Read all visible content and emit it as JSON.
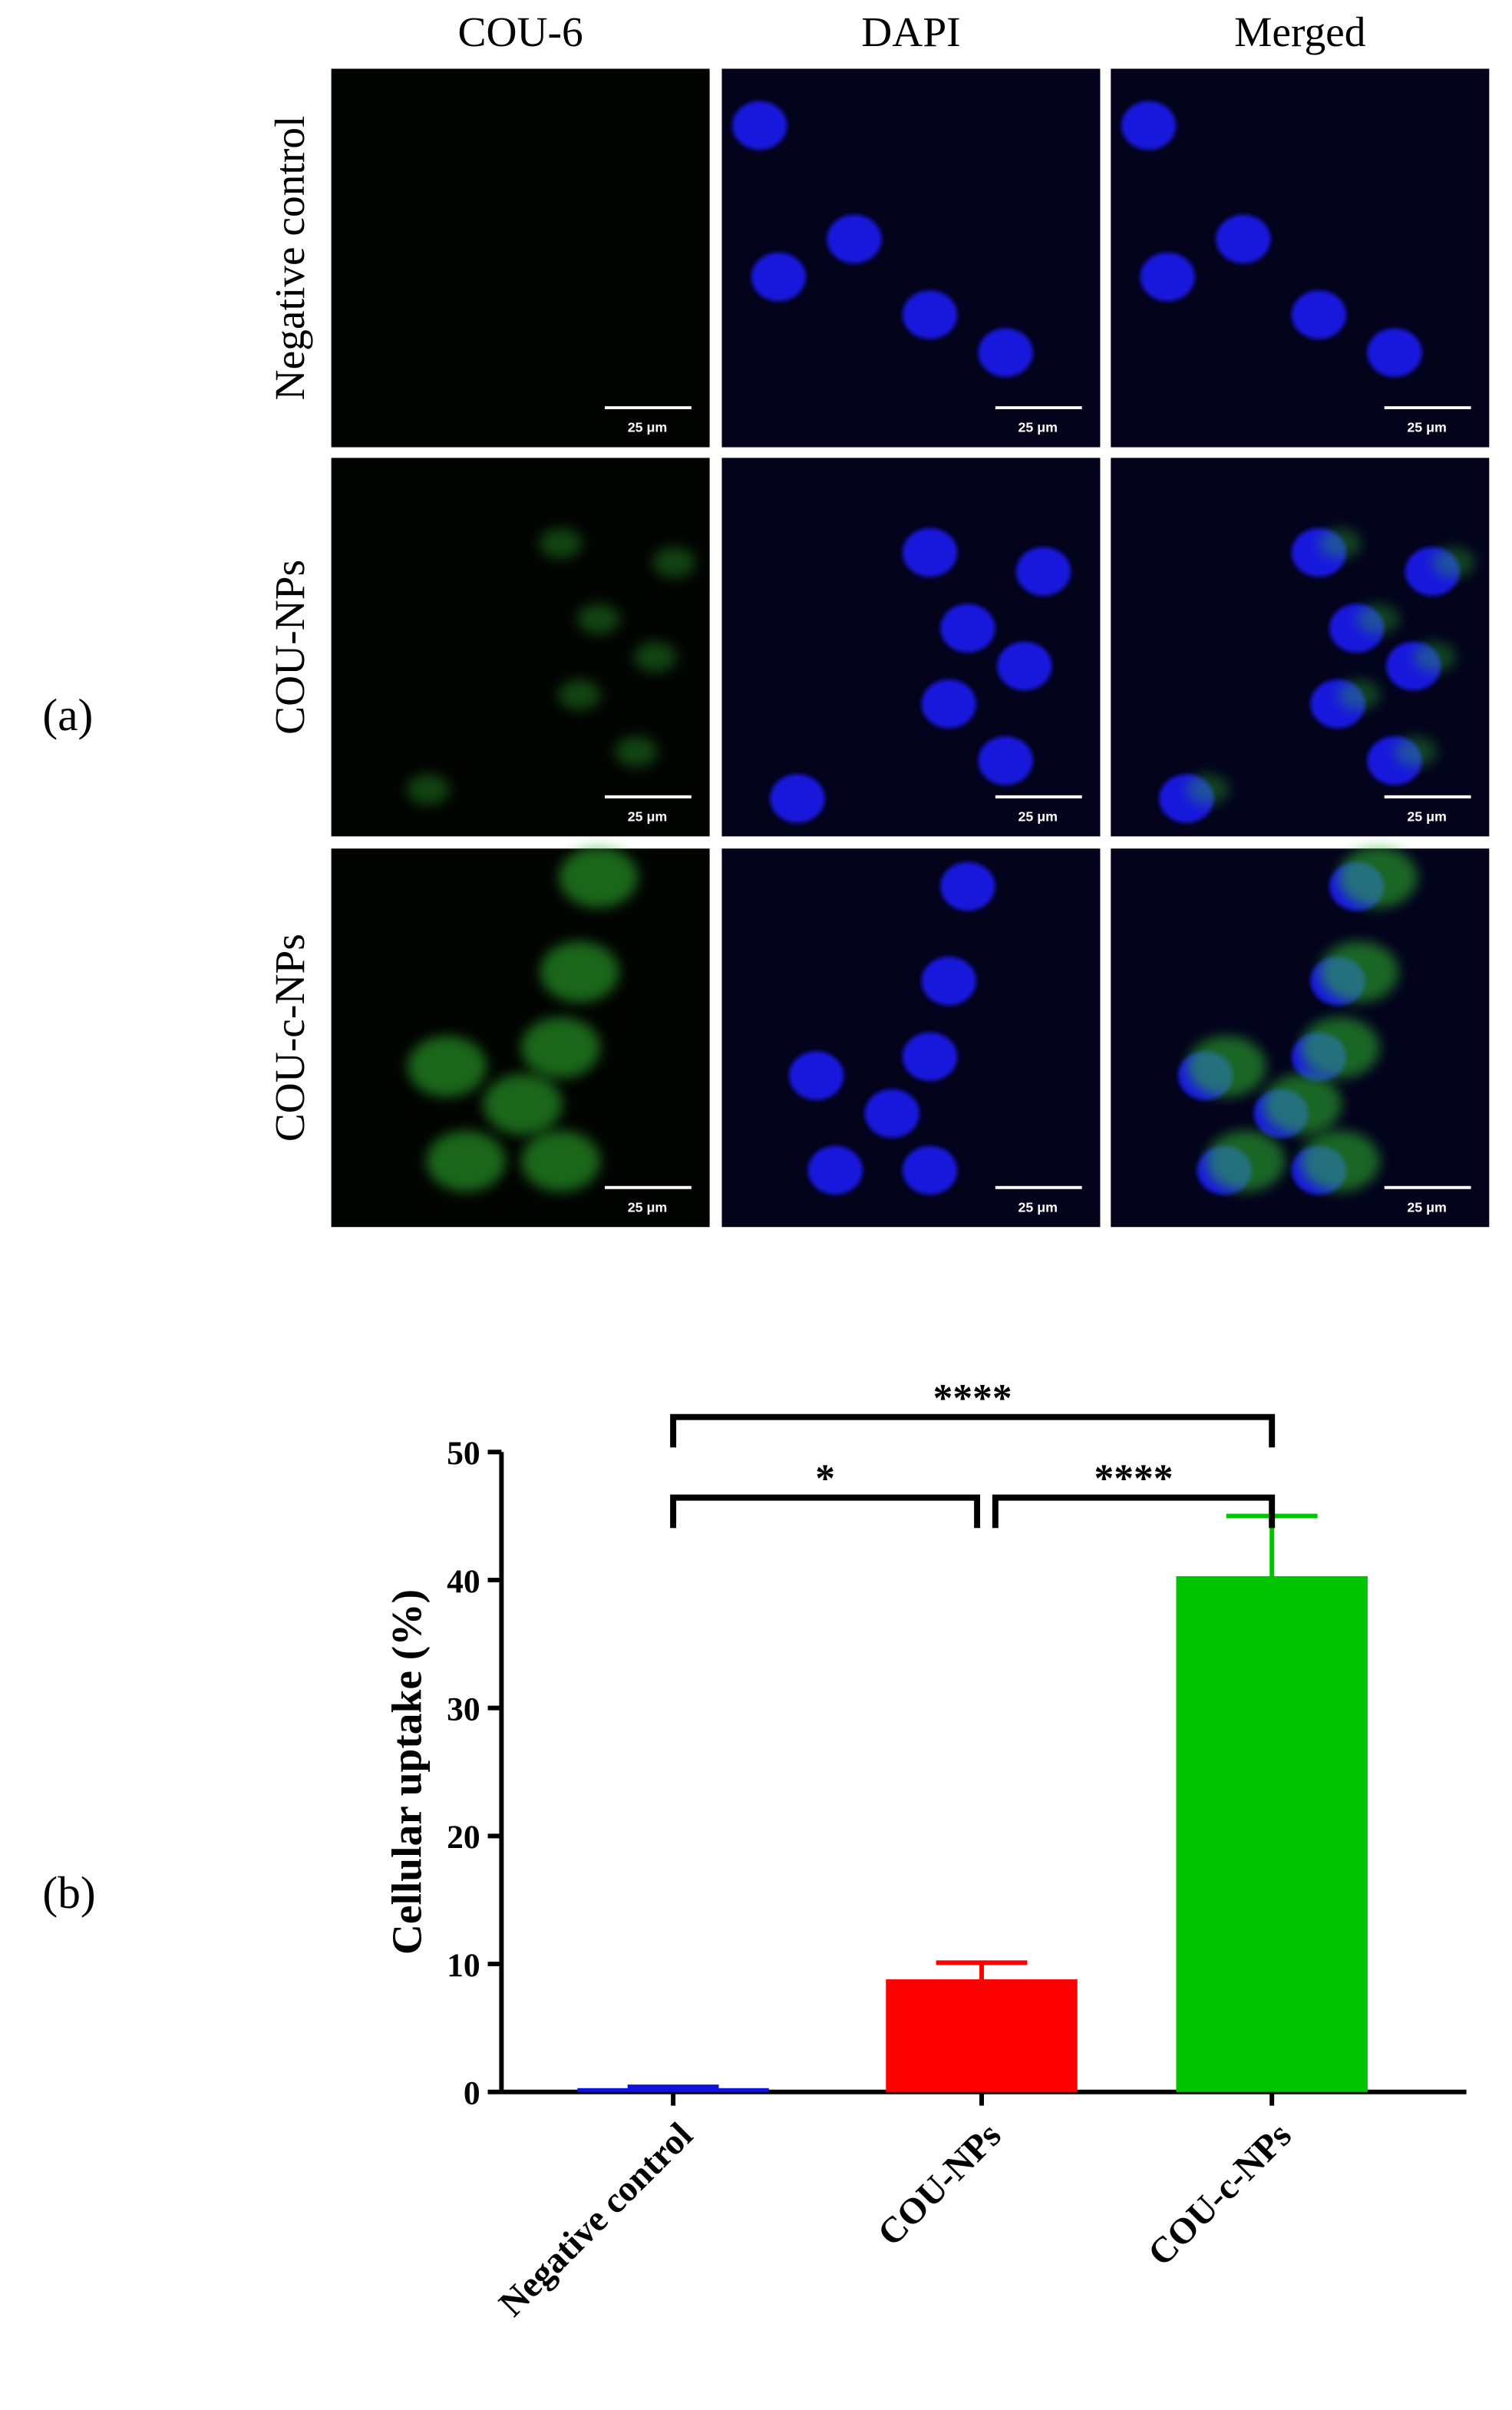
{
  "panel_a": {
    "label": "(a)",
    "column_headers": [
      "COU-6",
      "DAPI",
      "Merged"
    ],
    "row_labels": [
      "Negative control",
      "COU-NPs",
      "COU-c-NPs"
    ],
    "scale_bar_label": "25 μm"
  },
  "chart_data": {
    "type": "bar",
    "panel_label": "(b)",
    "ylabel": "Cellular uptake (%)",
    "categories": [
      "Negative control",
      "COU-NPs",
      "COU-c-NPs"
    ],
    "values": [
      0.3,
      8.8,
      40.3
    ],
    "errors": [
      0.1,
      1.3,
      4.7
    ],
    "colors": [
      "#1010e0",
      "#ff0000",
      "#00c400"
    ],
    "ylim": [
      0,
      50
    ],
    "yticks": [
      0,
      10,
      20,
      30,
      40,
      50
    ],
    "significance": [
      {
        "label": "****",
        "between": [
          "Negative control",
          "COU-c-NPs"
        ]
      },
      {
        "label": "*",
        "between": [
          "Negative control",
          "COU-NPs"
        ]
      },
      {
        "label": "****",
        "between": [
          "COU-NPs",
          "COU-c-NPs"
        ]
      }
    ]
  }
}
